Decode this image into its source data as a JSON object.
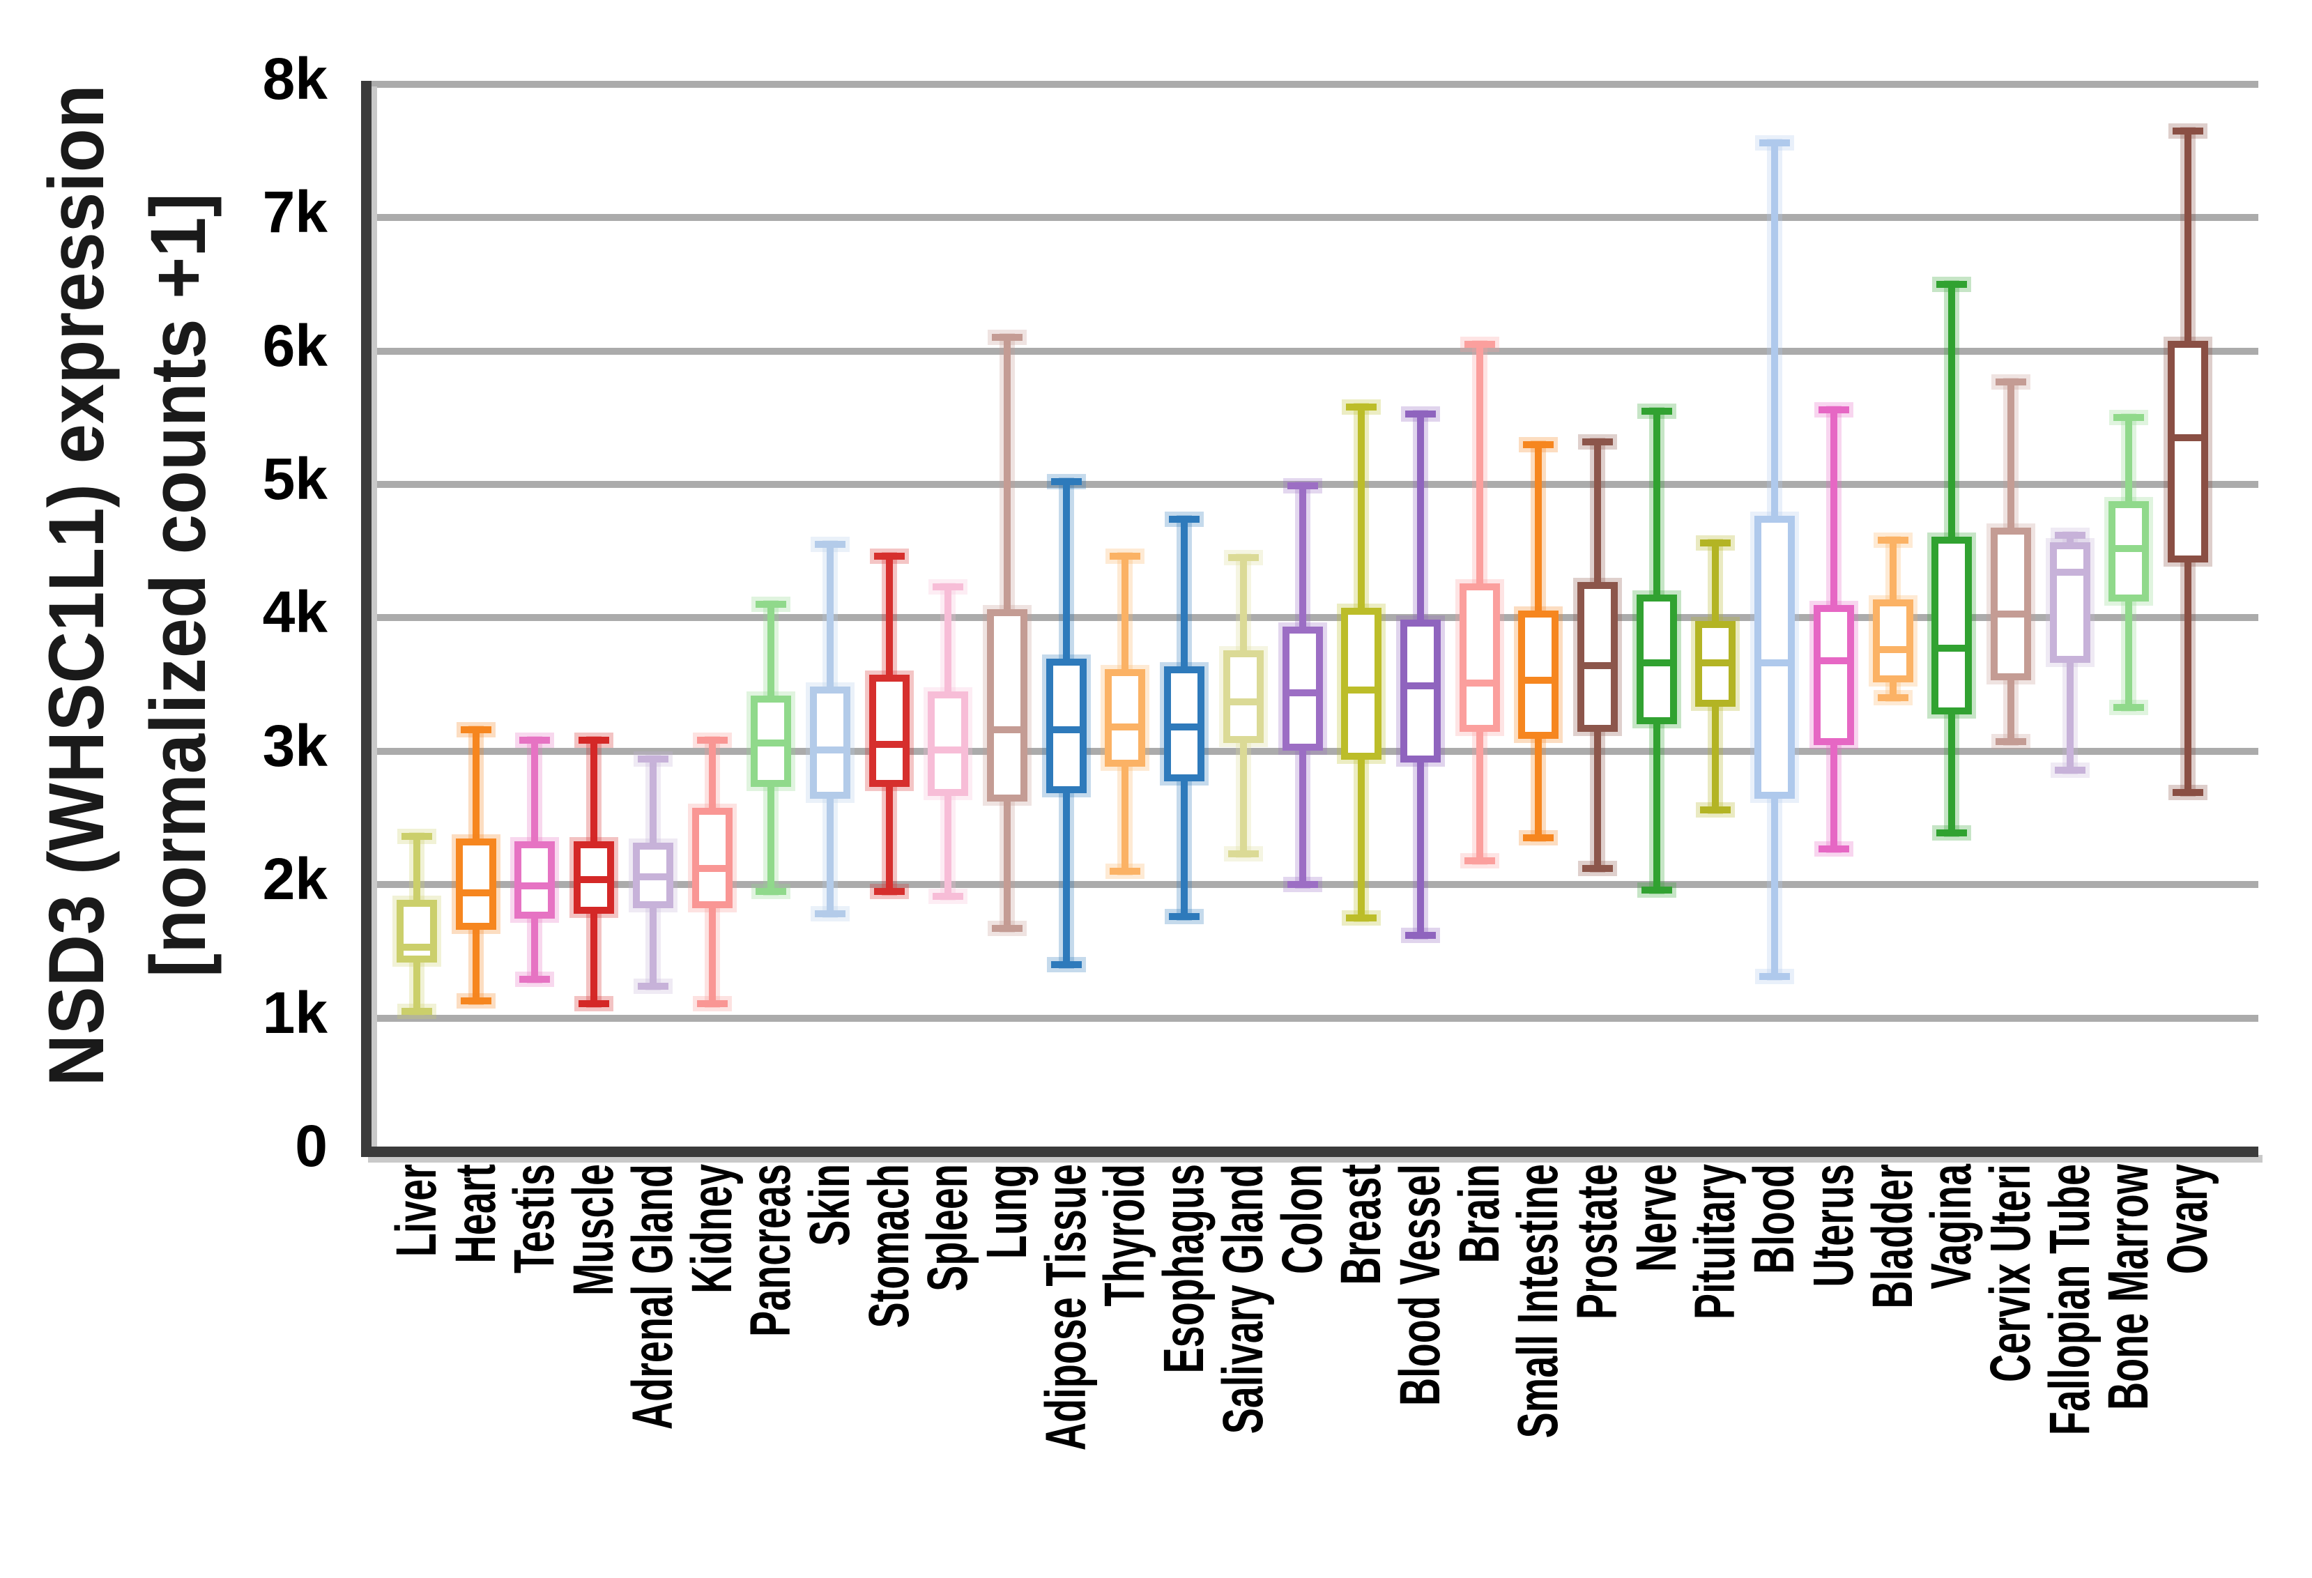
{
  "chart_data": {
    "type": "boxplot",
    "title": "",
    "ylabel_line1": "NSD3 (WHSC1L1) expression",
    "ylabel_line2": "[normalized counts +1]",
    "xlabel": "",
    "ylim": [
      0,
      8000
    ],
    "grid": true,
    "legend": false,
    "y_ticks": [
      {
        "label": "8k",
        "value": 8000
      },
      {
        "label": "7k",
        "value": 7000
      },
      {
        "label": "6k",
        "value": 6000
      },
      {
        "label": "5k",
        "value": 5000
      },
      {
        "label": "4k",
        "value": 4000
      },
      {
        "label": "3k",
        "value": 3000
      },
      {
        "label": "2k",
        "value": 2000
      },
      {
        "label": "1k",
        "value": 1000
      },
      {
        "label": "0",
        "value": 0
      }
    ],
    "categories": [
      "Liver",
      "Heart",
      "Testis",
      "Muscle",
      "Adrenal Gland",
      "Kidney",
      "Pancreas",
      "Skin",
      "Stomach",
      "Spleen",
      "Lung",
      "Adipose Tissue",
      "Thyroid",
      "Esophagus",
      "Salivary Gland",
      "Colon",
      "Breast",
      "Blood Vessel",
      "Brain",
      "Small Intestine",
      "Prostate",
      "Nerve",
      "Pituitary",
      "Blood",
      "Uterus",
      "Bladder",
      "Vagina",
      "Cervix Uteri",
      "Fallopian Tube",
      "Bone Marrow",
      "Ovary"
    ],
    "series": [
      {
        "label": "Liver",
        "color": "#cbcf6b",
        "whisker_low": 1050,
        "q1": 1440,
        "median": 1530,
        "q3": 1860,
        "whisker_high": 2360
      },
      {
        "label": "Heart",
        "color": "#f6861f",
        "whisker_low": 1130,
        "q1": 1690,
        "median": 1940,
        "q3": 2320,
        "whisker_high": 3160
      },
      {
        "label": "Testis",
        "color": "#e673c3",
        "whisker_low": 1290,
        "q1": 1770,
        "median": 1990,
        "q3": 2300,
        "whisker_high": 3080
      },
      {
        "label": "Muscle",
        "color": "#d42827",
        "whisker_low": 1110,
        "q1": 1810,
        "median": 2040,
        "q3": 2300,
        "whisker_high": 3080
      },
      {
        "label": "Adrenal Gland",
        "color": "#c7b2d9",
        "whisker_low": 1240,
        "q1": 1850,
        "median": 2060,
        "q3": 2290,
        "whisker_high": 2940
      },
      {
        "label": "Kidney",
        "color": "#f99694",
        "whisker_low": 1110,
        "q1": 1850,
        "median": 2120,
        "q3": 2550,
        "whisker_high": 3080
      },
      {
        "label": "Pancreas",
        "color": "#90d98b",
        "whisker_low": 1950,
        "q1": 2760,
        "median": 3060,
        "q3": 3390,
        "whisker_high": 4100
      },
      {
        "label": "Skin",
        "color": "#b3cbe9",
        "whisker_low": 1780,
        "q1": 2670,
        "median": 3010,
        "q3": 3460,
        "whisker_high": 4550
      },
      {
        "label": "Stomach",
        "color": "#d62f2d",
        "whisker_low": 1950,
        "q1": 2760,
        "median": 3050,
        "q3": 3550,
        "whisker_high": 4460
      },
      {
        "label": "Spleen",
        "color": "#f7bdd7",
        "whisker_low": 1910,
        "q1": 2690,
        "median": 3010,
        "q3": 3420,
        "whisker_high": 4230
      },
      {
        "label": "Lung",
        "color": "#c49c94",
        "whisker_low": 1670,
        "q1": 2650,
        "median": 3160,
        "q3": 4040,
        "whisker_high": 6100
      },
      {
        "label": "Adipose Tissue",
        "color": "#2e7abb",
        "whisker_low": 1400,
        "q1": 2710,
        "median": 3160,
        "q3": 3670,
        "whisker_high": 5020
      },
      {
        "label": "Thyroid",
        "color": "#fbb265",
        "whisker_low": 2100,
        "q1": 2910,
        "median": 3180,
        "q3": 3590,
        "whisker_high": 4460
      },
      {
        "label": "Esophagus",
        "color": "#2e7abb",
        "whisker_low": 1760,
        "q1": 2800,
        "median": 3180,
        "q3": 3610,
        "whisker_high": 4740
      },
      {
        "label": "Salivary Gland",
        "color": "#dbda96",
        "whisker_low": 2230,
        "q1": 3090,
        "median": 3370,
        "q3": 3730,
        "whisker_high": 4450
      },
      {
        "label": "Colon",
        "color": "#9c6ec4",
        "whisker_low": 2000,
        "q1": 3030,
        "median": 3440,
        "q3": 3910,
        "whisker_high": 4990
      },
      {
        "label": "Breast",
        "color": "#bcbd29",
        "whisker_low": 1750,
        "q1": 2960,
        "median": 3460,
        "q3": 4050,
        "whisker_high": 5580
      },
      {
        "label": "Blood Vessel",
        "color": "#8f64be",
        "whisker_low": 1620,
        "q1": 2940,
        "median": 3490,
        "q3": 3960,
        "whisker_high": 5530
      },
      {
        "label": "Brain",
        "color": "#fb9f9d",
        "whisker_low": 2180,
        "q1": 3170,
        "median": 3510,
        "q3": 4230,
        "whisker_high": 6050
      },
      {
        "label": "Small Intestine",
        "color": "#f6861f",
        "whisker_low": 2350,
        "q1": 3120,
        "median": 3530,
        "q3": 4030,
        "whisker_high": 5300
      },
      {
        "label": "Prostate",
        "color": "#8c564b",
        "whisker_low": 2120,
        "q1": 3170,
        "median": 3640,
        "q3": 4240,
        "whisker_high": 5320
      },
      {
        "label": "Nerve",
        "color": "#31a231",
        "whisker_low": 1960,
        "q1": 3230,
        "median": 3660,
        "q3": 4150,
        "whisker_high": 5550
      },
      {
        "label": "Pituitary",
        "color": "#b3b424",
        "whisker_low": 2560,
        "q1": 3360,
        "median": 3660,
        "q3": 3950,
        "whisker_high": 4560
      },
      {
        "label": "Blood",
        "color": "#afc9ec",
        "whisker_low": 1310,
        "q1": 2670,
        "median": 3660,
        "q3": 4740,
        "whisker_high": 7560
      },
      {
        "label": "Uterus",
        "color": "#e667c4",
        "whisker_low": 2270,
        "q1": 3070,
        "median": 3680,
        "q3": 4070,
        "whisker_high": 5560
      },
      {
        "label": "Bladder",
        "color": "#fbb265",
        "whisker_low": 3400,
        "q1": 3540,
        "median": 3760,
        "q3": 4110,
        "whisker_high": 4580
      },
      {
        "label": "Vagina",
        "color": "#31a231",
        "whisker_low": 2390,
        "q1": 3300,
        "median": 3770,
        "q3": 4580,
        "whisker_high": 6500
      },
      {
        "label": "Cervix Uteri",
        "color": "#c49c94",
        "whisker_low": 3070,
        "q1": 3560,
        "median": 4030,
        "q3": 4650,
        "whisker_high": 5770
      },
      {
        "label": "Fallopian Tube",
        "color": "#c7b2d9",
        "whisker_low": 2860,
        "q1": 3690,
        "median": 4340,
        "q3": 4540,
        "whisker_high": 4620
      },
      {
        "label": "Bone Marrow",
        "color": "#90d98b",
        "whisker_low": 3330,
        "q1": 4150,
        "median": 4520,
        "q3": 4850,
        "whisker_high": 5500
      },
      {
        "label": "Ovary",
        "color": "#8a4f44",
        "whisker_low": 2690,
        "q1": 4440,
        "median": 5350,
        "q3": 6050,
        "whisker_high": 7650
      }
    ]
  }
}
